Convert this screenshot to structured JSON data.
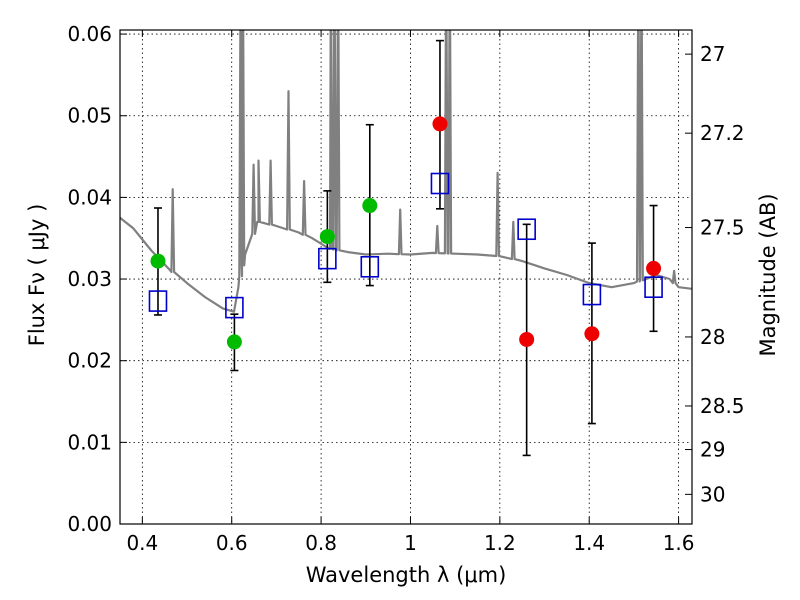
{
  "chart_data": {
    "type": "scatter",
    "xlabel": "Wavelength  λ (μm)",
    "ylabel": "Flux  Fν  ( μJy )",
    "y2label": "Magnitude (AB)",
    "xlim": [
      0.35,
      1.63
    ],
    "ylim": [
      0.0,
      0.0605
    ],
    "x_ticks": [
      0.4,
      0.6,
      0.8,
      1.0,
      1.2,
      1.4,
      1.6
    ],
    "x_tick_labels": [
      "0.4",
      "0.6",
      "0.8",
      "1",
      "1.2",
      "1.4",
      "1.6"
    ],
    "y_ticks": [
      0.0,
      0.01,
      0.02,
      0.03,
      0.04,
      0.05,
      0.06
    ],
    "y_tick_labels": [
      "0.00",
      "0.01",
      "0.02",
      "0.03",
      "0.04",
      "0.05",
      "0.06"
    ],
    "magnitude_ticks": [
      27,
      27.2,
      27.5,
      28,
      28.5,
      29,
      30
    ],
    "magnitude_tick_labels": [
      "27",
      "27.2",
      "27.5",
      "28",
      "28.5",
      "29",
      "30"
    ],
    "grid": true,
    "colors": {
      "spectrum": "#808080",
      "green_points": "#00bb00",
      "red_points": "#ee0000",
      "model_squares": "#0000cc",
      "error_bars": "#000000"
    },
    "series": [
      {
        "marker": "filled-circle",
        "color": "#00bb00",
        "points": [
          {
            "x": 0.435,
            "y": 0.0322,
            "err_low": 0.0256,
            "err_high": 0.0387
          },
          {
            "x": 0.606,
            "y": 0.0223,
            "err_low": 0.0188,
            "err_high": 0.0257
          },
          {
            "x": 0.814,
            "y": 0.0352,
            "err_low": 0.0296,
            "err_high": 0.0408
          },
          {
            "x": 0.909,
            "y": 0.039,
            "err_low": 0.0292,
            "err_high": 0.0489
          }
        ]
      },
      {
        "marker": "filled-circle",
        "color": "#ee0000",
        "points": [
          {
            "x": 1.066,
            "y": 0.049,
            "err_low": 0.0386,
            "err_high": 0.0592
          },
          {
            "x": 1.26,
            "y": 0.0226,
            "err_low": 0.0084,
            "err_high": 0.0367
          },
          {
            "x": 1.406,
            "y": 0.0233,
            "err_low": 0.0123,
            "err_high": 0.0344
          },
          {
            "x": 1.544,
            "y": 0.0313,
            "err_low": 0.0236,
            "err_high": 0.039
          }
        ]
      },
      {
        "marker": "open-square",
        "color": "#0000cc",
        "points": [
          {
            "x": 0.435,
            "y": 0.0273
          },
          {
            "x": 0.606,
            "y": 0.0265
          },
          {
            "x": 0.814,
            "y": 0.0325
          },
          {
            "x": 0.909,
            "y": 0.0315
          },
          {
            "x": 1.066,
            "y": 0.0417
          },
          {
            "x": 1.26,
            "y": 0.0361
          },
          {
            "x": 1.406,
            "y": 0.0281
          },
          {
            "x": 1.544,
            "y": 0.029
          }
        ]
      }
    ],
    "spectrum": {
      "continuum": [
        [
          0.35,
          0.0375
        ],
        [
          0.38,
          0.0362
        ],
        [
          0.42,
          0.0335
        ],
        [
          0.46,
          0.0312
        ],
        [
          0.5,
          0.0295
        ],
        [
          0.54,
          0.0278
        ],
        [
          0.58,
          0.0264
        ],
        [
          0.605,
          0.026
        ],
        [
          0.615,
          0.029
        ],
        [
          0.63,
          0.033
        ],
        [
          0.66,
          0.037
        ],
        [
          0.7,
          0.0365
        ],
        [
          0.75,
          0.0357
        ],
        [
          0.78,
          0.035
        ],
        [
          0.82,
          0.0337
        ],
        [
          0.86,
          0.0333
        ],
        [
          0.9,
          0.033
        ],
        [
          0.95,
          0.0331
        ],
        [
          1.0,
          0.033
        ],
        [
          1.05,
          0.0332
        ],
        [
          1.1,
          0.0331
        ],
        [
          1.15,
          0.033
        ],
        [
          1.2,
          0.0328
        ],
        [
          1.25,
          0.0322
        ],
        [
          1.3,
          0.0313
        ],
        [
          1.35,
          0.0305
        ],
        [
          1.4,
          0.0295
        ],
        [
          1.45,
          0.029
        ],
        [
          1.5,
          0.0295
        ],
        [
          1.55,
          0.0305
        ],
        [
          1.58,
          0.03
        ],
        [
          1.6,
          0.029
        ],
        [
          1.63,
          0.0288
        ]
      ],
      "lines": [
        {
          "x": 0.468,
          "peak": 0.041
        },
        {
          "x": 0.62,
          "peak": 0.07
        },
        {
          "x": 0.625,
          "peak": 0.07
        },
        {
          "x": 0.649,
          "peak": 0.044
        },
        {
          "x": 0.66,
          "peak": 0.0445
        },
        {
          "x": 0.687,
          "peak": 0.0445
        },
        {
          "x": 0.727,
          "peak": 0.053
        },
        {
          "x": 0.762,
          "peak": 0.042
        },
        {
          "x": 0.822,
          "peak": 0.07
        },
        {
          "x": 0.83,
          "peak": 0.07
        },
        {
          "x": 0.838,
          "peak": 0.07
        },
        {
          "x": 0.977,
          "peak": 0.0385
        },
        {
          "x": 1.06,
          "peak": 0.0365
        },
        {
          "x": 1.08,
          "peak": 0.07
        },
        {
          "x": 1.088,
          "peak": 0.07
        },
        {
          "x": 1.195,
          "peak": 0.043
        },
        {
          "x": 1.23,
          "peak": 0.037
        },
        {
          "x": 1.51,
          "peak": 0.07
        },
        {
          "x": 1.517,
          "peak": 0.07
        },
        {
          "x": 1.59,
          "peak": 0.031
        }
      ]
    }
  }
}
